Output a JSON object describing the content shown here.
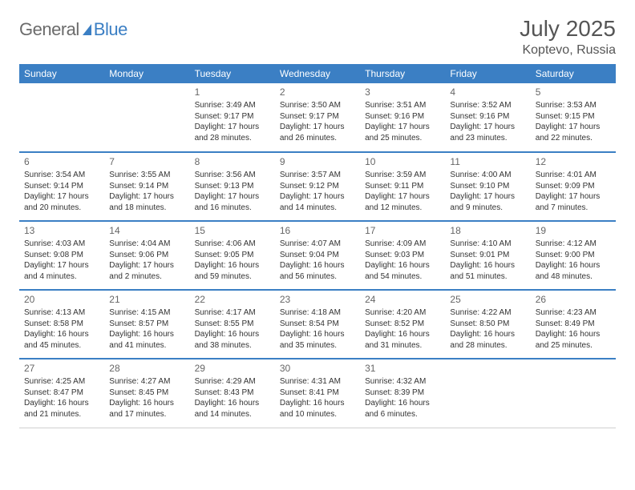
{
  "logo": {
    "general": "General",
    "blue": "Blue"
  },
  "header": {
    "title": "July 2025",
    "location": "Koptevo, Russia"
  },
  "colors": {
    "brand": "#3b7fc4",
    "text": "#333333",
    "muted": "#666666"
  },
  "weekdays": [
    "Sunday",
    "Monday",
    "Tuesday",
    "Wednesday",
    "Thursday",
    "Friday",
    "Saturday"
  ],
  "weeks": [
    [
      null,
      null,
      {
        "d": "1",
        "sr": "Sunrise: 3:49 AM",
        "ss": "Sunset: 9:17 PM",
        "dl1": "Daylight: 17 hours",
        "dl2": "and 28 minutes."
      },
      {
        "d": "2",
        "sr": "Sunrise: 3:50 AM",
        "ss": "Sunset: 9:17 PM",
        "dl1": "Daylight: 17 hours",
        "dl2": "and 26 minutes."
      },
      {
        "d": "3",
        "sr": "Sunrise: 3:51 AM",
        "ss": "Sunset: 9:16 PM",
        "dl1": "Daylight: 17 hours",
        "dl2": "and 25 minutes."
      },
      {
        "d": "4",
        "sr": "Sunrise: 3:52 AM",
        "ss": "Sunset: 9:16 PM",
        "dl1": "Daylight: 17 hours",
        "dl2": "and 23 minutes."
      },
      {
        "d": "5",
        "sr": "Sunrise: 3:53 AM",
        "ss": "Sunset: 9:15 PM",
        "dl1": "Daylight: 17 hours",
        "dl2": "and 22 minutes."
      }
    ],
    [
      {
        "d": "6",
        "sr": "Sunrise: 3:54 AM",
        "ss": "Sunset: 9:14 PM",
        "dl1": "Daylight: 17 hours",
        "dl2": "and 20 minutes."
      },
      {
        "d": "7",
        "sr": "Sunrise: 3:55 AM",
        "ss": "Sunset: 9:14 PM",
        "dl1": "Daylight: 17 hours",
        "dl2": "and 18 minutes."
      },
      {
        "d": "8",
        "sr": "Sunrise: 3:56 AM",
        "ss": "Sunset: 9:13 PM",
        "dl1": "Daylight: 17 hours",
        "dl2": "and 16 minutes."
      },
      {
        "d": "9",
        "sr": "Sunrise: 3:57 AM",
        "ss": "Sunset: 9:12 PM",
        "dl1": "Daylight: 17 hours",
        "dl2": "and 14 minutes."
      },
      {
        "d": "10",
        "sr": "Sunrise: 3:59 AM",
        "ss": "Sunset: 9:11 PM",
        "dl1": "Daylight: 17 hours",
        "dl2": "and 12 minutes."
      },
      {
        "d": "11",
        "sr": "Sunrise: 4:00 AM",
        "ss": "Sunset: 9:10 PM",
        "dl1": "Daylight: 17 hours",
        "dl2": "and 9 minutes."
      },
      {
        "d": "12",
        "sr": "Sunrise: 4:01 AM",
        "ss": "Sunset: 9:09 PM",
        "dl1": "Daylight: 17 hours",
        "dl2": "and 7 minutes."
      }
    ],
    [
      {
        "d": "13",
        "sr": "Sunrise: 4:03 AM",
        "ss": "Sunset: 9:08 PM",
        "dl1": "Daylight: 17 hours",
        "dl2": "and 4 minutes."
      },
      {
        "d": "14",
        "sr": "Sunrise: 4:04 AM",
        "ss": "Sunset: 9:06 PM",
        "dl1": "Daylight: 17 hours",
        "dl2": "and 2 minutes."
      },
      {
        "d": "15",
        "sr": "Sunrise: 4:06 AM",
        "ss": "Sunset: 9:05 PM",
        "dl1": "Daylight: 16 hours",
        "dl2": "and 59 minutes."
      },
      {
        "d": "16",
        "sr": "Sunrise: 4:07 AM",
        "ss": "Sunset: 9:04 PM",
        "dl1": "Daylight: 16 hours",
        "dl2": "and 56 minutes."
      },
      {
        "d": "17",
        "sr": "Sunrise: 4:09 AM",
        "ss": "Sunset: 9:03 PM",
        "dl1": "Daylight: 16 hours",
        "dl2": "and 54 minutes."
      },
      {
        "d": "18",
        "sr": "Sunrise: 4:10 AM",
        "ss": "Sunset: 9:01 PM",
        "dl1": "Daylight: 16 hours",
        "dl2": "and 51 minutes."
      },
      {
        "d": "19",
        "sr": "Sunrise: 4:12 AM",
        "ss": "Sunset: 9:00 PM",
        "dl1": "Daylight: 16 hours",
        "dl2": "and 48 minutes."
      }
    ],
    [
      {
        "d": "20",
        "sr": "Sunrise: 4:13 AM",
        "ss": "Sunset: 8:58 PM",
        "dl1": "Daylight: 16 hours",
        "dl2": "and 45 minutes."
      },
      {
        "d": "21",
        "sr": "Sunrise: 4:15 AM",
        "ss": "Sunset: 8:57 PM",
        "dl1": "Daylight: 16 hours",
        "dl2": "and 41 minutes."
      },
      {
        "d": "22",
        "sr": "Sunrise: 4:17 AM",
        "ss": "Sunset: 8:55 PM",
        "dl1": "Daylight: 16 hours",
        "dl2": "and 38 minutes."
      },
      {
        "d": "23",
        "sr": "Sunrise: 4:18 AM",
        "ss": "Sunset: 8:54 PM",
        "dl1": "Daylight: 16 hours",
        "dl2": "and 35 minutes."
      },
      {
        "d": "24",
        "sr": "Sunrise: 4:20 AM",
        "ss": "Sunset: 8:52 PM",
        "dl1": "Daylight: 16 hours",
        "dl2": "and 31 minutes."
      },
      {
        "d": "25",
        "sr": "Sunrise: 4:22 AM",
        "ss": "Sunset: 8:50 PM",
        "dl1": "Daylight: 16 hours",
        "dl2": "and 28 minutes."
      },
      {
        "d": "26",
        "sr": "Sunrise: 4:23 AM",
        "ss": "Sunset: 8:49 PM",
        "dl1": "Daylight: 16 hours",
        "dl2": "and 25 minutes."
      }
    ],
    [
      {
        "d": "27",
        "sr": "Sunrise: 4:25 AM",
        "ss": "Sunset: 8:47 PM",
        "dl1": "Daylight: 16 hours",
        "dl2": "and 21 minutes."
      },
      {
        "d": "28",
        "sr": "Sunrise: 4:27 AM",
        "ss": "Sunset: 8:45 PM",
        "dl1": "Daylight: 16 hours",
        "dl2": "and 17 minutes."
      },
      {
        "d": "29",
        "sr": "Sunrise: 4:29 AM",
        "ss": "Sunset: 8:43 PM",
        "dl1": "Daylight: 16 hours",
        "dl2": "and 14 minutes."
      },
      {
        "d": "30",
        "sr": "Sunrise: 4:31 AM",
        "ss": "Sunset: 8:41 PM",
        "dl1": "Daylight: 16 hours",
        "dl2": "and 10 minutes."
      },
      {
        "d": "31",
        "sr": "Sunrise: 4:32 AM",
        "ss": "Sunset: 8:39 PM",
        "dl1": "Daylight: 16 hours",
        "dl2": "and 6 minutes."
      },
      null,
      null
    ]
  ]
}
